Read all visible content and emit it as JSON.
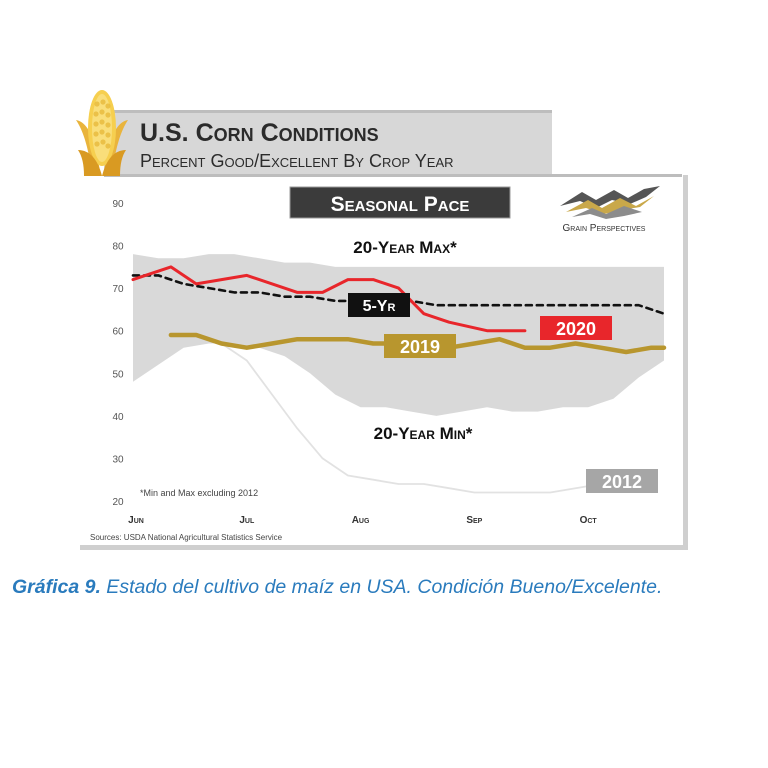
{
  "header": {
    "title": "U.S. Corn Conditions",
    "subtitle": "Percent Good/Excellent By Crop Year"
  },
  "badge": "Seasonal Pace",
  "brand": "Grain Perspectives",
  "caption": {
    "label": "Gráfica 9.",
    "text": " Estado del cultivo de maíz en USA. Condición Bueno/Excelente."
  },
  "colors": {
    "band": "#d9d9d9",
    "y2020": "#e8262b",
    "y2019": "#b8962e",
    "y2012": "#e2e2e2",
    "fiveyr": "#111111",
    "badge2012": "#a6a6a6"
  },
  "chart_data": {
    "type": "line",
    "title": "Seasonal Pace",
    "ylim": [
      20,
      90
    ],
    "yticks": [
      20,
      30,
      40,
      50,
      60,
      70,
      80,
      90
    ],
    "xticks": [
      {
        "label": "Jun",
        "week": 0
      },
      {
        "label": "Jul",
        "week": 4.5
      },
      {
        "label": "Aug",
        "week": 9
      },
      {
        "label": "Sep",
        "week": 13.5
      },
      {
        "label": "Oct",
        "week": 18
      }
    ],
    "band": {
      "label_max": "20-Year Max*",
      "label_min": "20-Year Min*",
      "weeks": [
        0,
        1,
        2,
        3,
        4,
        5,
        6,
        7,
        8,
        9,
        10,
        11,
        12,
        13,
        14,
        15,
        16,
        17,
        18,
        19,
        20,
        21
      ],
      "max": [
        78,
        77,
        77,
        78,
        78,
        77,
        76,
        76,
        75,
        75,
        75,
        75,
        75,
        75,
        75,
        75,
        75,
        75,
        75,
        75,
        75,
        75
      ],
      "min": [
        48,
        52,
        56,
        57,
        57,
        56,
        54,
        50,
        45,
        42,
        42,
        41,
        40,
        41,
        42,
        41,
        41,
        42,
        42,
        44,
        49,
        53
      ]
    },
    "series": [
      {
        "name": "2020",
        "weeks": [
          0,
          1.5,
          2.5,
          4.5,
          6.5,
          7.5,
          8.5,
          9.5,
          10.5,
          11.5,
          12.5,
          14,
          15.5
        ],
        "values": [
          72,
          75,
          71,
          73,
          69,
          69,
          72,
          72,
          70,
          64,
          62,
          60,
          60
        ]
      },
      {
        "name": "5-Yr",
        "weeks": [
          0,
          1,
          2,
          3,
          4,
          5,
          6,
          7,
          8,
          9,
          10,
          11,
          12,
          13,
          14,
          15,
          16,
          17,
          18,
          19,
          20,
          21
        ],
        "values": [
          73,
          73,
          71,
          70,
          69,
          69,
          68,
          68,
          67,
          67,
          67,
          67,
          66,
          66,
          66,
          66,
          66,
          66,
          66,
          66,
          66,
          64
        ]
      },
      {
        "name": "2019",
        "weeks": [
          1.5,
          2.5,
          3.5,
          4.5,
          5.5,
          6.5,
          7.5,
          8.5,
          9.5,
          10.5,
          11.5,
          12.5,
          13.5,
          14.5,
          15.5,
          16.5,
          17.5,
          18.5,
          19.5,
          20.5,
          21
        ],
        "values": [
          59,
          59,
          57,
          56,
          57,
          58,
          58,
          58,
          57,
          57,
          56,
          56,
          57,
          58,
          56,
          56,
          57,
          56,
          55,
          56,
          56
        ]
      },
      {
        "name": "2012",
        "weeks": [
          3.5,
          4.5,
          5.5,
          6.5,
          7.5,
          8.5,
          9.5,
          10.5,
          11.5,
          12.5,
          13.5,
          14.5,
          15.5,
          16.5,
          17.5,
          18.5
        ],
        "values": [
          57,
          53,
          45,
          37,
          30,
          26,
          25,
          24,
          24,
          23,
          22,
          22,
          22,
          22,
          23,
          24
        ]
      }
    ],
    "labels": {
      "fiveyr": "5-Yr",
      "y2020": "2020",
      "y2019": "2019",
      "y2012": "2012"
    },
    "footnote": "*Min and Max excluding 2012",
    "source": "Sources: USDA National Agricultural Statistics Service",
    "grid": false
  }
}
